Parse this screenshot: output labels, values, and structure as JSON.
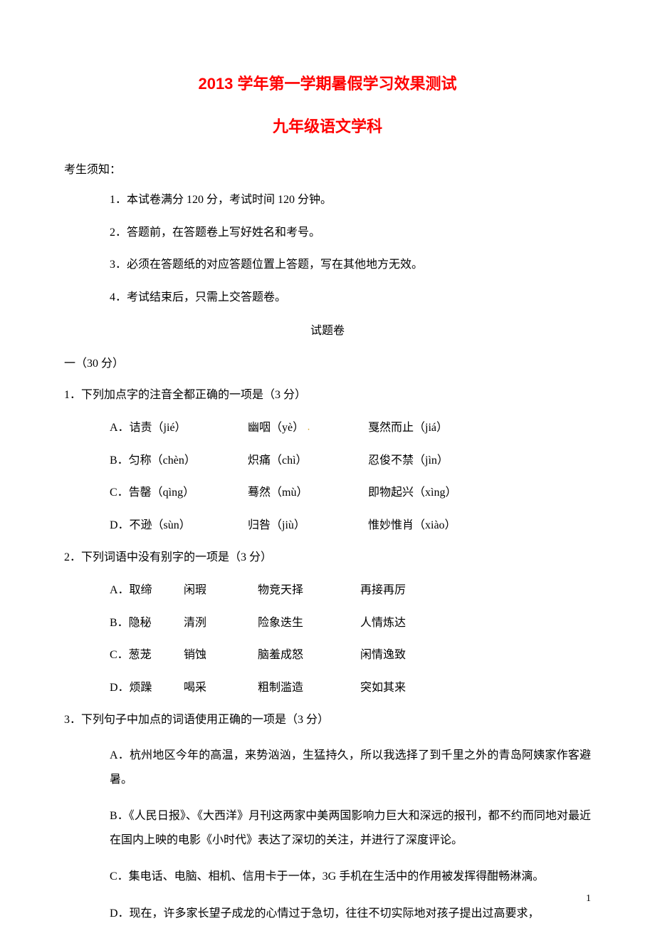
{
  "title_main": "2013 学年第一学期暑假学习效果测试",
  "title_sub": "九年级语文学科",
  "notice": {
    "label": "考生须知：",
    "items": [
      "1．本试卷满分 120 分，考试时间 120 分钟。",
      "2．答题前，在答题卷上写好姓名和考号。",
      "3．必须在答题纸的对应答题位置上答题，写在其他地方无效。",
      "4．考试结束后，只需上交答题卷。"
    ]
  },
  "paper_label": "试题卷",
  "section_one": "一（30 分）",
  "q1": {
    "stem": "1．下列加点字的注音全都正确的一项是（3 分）",
    "options": [
      {
        "a": "A．诘责（jié）",
        "b": "幽咽（yè）",
        "dot": "．",
        "c": "戛然而止（jiá）"
      },
      {
        "a": "B．匀称（chèn）",
        "b": "炽痛（chì）",
        "c": "忍俊不禁（jìn）"
      },
      {
        "a": "C．告罄（qìng）",
        "b": "蓦然（mù）",
        "c": "即物起兴（xìng）"
      },
      {
        "a": "D．不逊（sùn）",
        "b": "归咎（jiù）",
        "c": "惟妙惟肖（xiào）"
      }
    ]
  },
  "q2": {
    "stem": "2．下列词语中没有别字的一项是（3 分）",
    "options": [
      {
        "a": "A．取缔",
        "b": "闲瑕",
        "c": "物竞天择",
        "d": "再接再厉"
      },
      {
        "a": "B．隐秘",
        "b": "清洌",
        "c": "险象迭生",
        "d": "人情炼达"
      },
      {
        "a": "C．葱茏",
        "b": "销蚀",
        "c": "脑羞成怒",
        "d": "闲情逸致"
      },
      {
        "a": "D．烦躁",
        "b": "喝采",
        "c": "粗制滥造",
        "d": "突如其来"
      }
    ]
  },
  "q3": {
    "stem": "3．下列句子中加点的词语使用正确的一项是（3 分）",
    "options": [
      "A．杭州地区今年的高温，来势汹汹，生猛持久，所以我选择了到千里之外的青岛阿姨家作客避暑。",
      "B．《人民日报》、《大西洋》月刊这两家中美两国影响力巨大和深远的报刊，都不约而同地对最近在国内上映的电影《小时代》表达了深切的关注，并进行了深度评论。",
      "C．集电话、电脑、相机、信用卡于一体，3G 手机在生活中的作用被发挥得酣畅淋漓。",
      "D．现在，许多家长望子成龙的心情过于急切，往往不切实际地对孩子提出过高要求，"
    ]
  },
  "page_number": "1",
  "colors": {
    "title": "#ff0000",
    "text": "#000000",
    "bg": "#ffffff",
    "dot": "#d4a020"
  },
  "typography": {
    "title_fontsize": 22,
    "body_fontsize": 16,
    "line_height": 1.6
  }
}
